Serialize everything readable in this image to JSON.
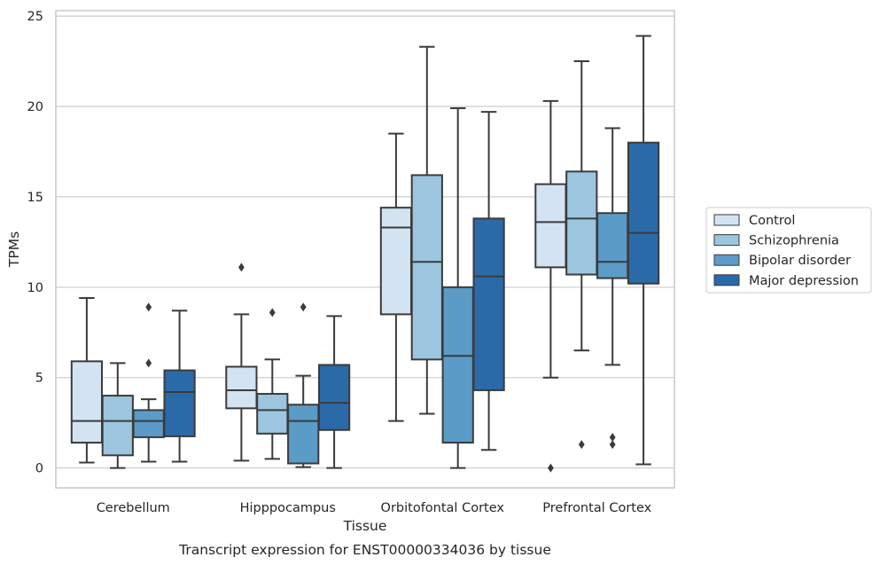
{
  "chart_data": {
    "type": "box",
    "title": "",
    "caption": "Transcript expression for ENST00000334036 by tissue",
    "xlabel": "Tissue",
    "ylabel": "TPMs",
    "ylim": [
      -1.1,
      25.3
    ],
    "yticks": [
      0,
      5,
      10,
      15,
      20,
      25
    ],
    "grid": "horizontal",
    "legend_position": "right",
    "categories": [
      "Cerebellum",
      "Hipppocampus",
      "Orbitofontal Cortex",
      "Prefrontal Cortex"
    ],
    "series": [
      {
        "name": "Control",
        "color": "#d3e3f2",
        "boxes": [
          {
            "whisker_low": 0.3,
            "q1": 1.4,
            "median": 2.6,
            "q3": 5.9,
            "whisker_high": 9.4,
            "outliers": []
          },
          {
            "whisker_low": 0.4,
            "q1": 3.3,
            "median": 4.3,
            "q3": 5.6,
            "whisker_high": 8.5,
            "outliers": [
              11.1
            ]
          },
          {
            "whisker_low": 2.6,
            "q1": 8.5,
            "median": 13.3,
            "q3": 14.4,
            "whisker_high": 18.5,
            "outliers": []
          },
          {
            "whisker_low": 5.0,
            "q1": 11.1,
            "median": 13.6,
            "q3": 15.7,
            "whisker_high": 20.3,
            "outliers": [
              0.0
            ]
          }
        ]
      },
      {
        "name": "Schizophrenia",
        "color": "#9cc6df",
        "boxes": [
          {
            "whisker_low": 0.0,
            "q1": 0.7,
            "median": 2.6,
            "q3": 4.0,
            "whisker_high": 5.8,
            "outliers": []
          },
          {
            "whisker_low": 0.5,
            "q1": 1.9,
            "median": 3.2,
            "q3": 4.1,
            "whisker_high": 6.0,
            "outliers": [
              8.6
            ]
          },
          {
            "whisker_low": 3.0,
            "q1": 6.0,
            "median": 11.4,
            "q3": 16.2,
            "whisker_high": 23.3,
            "outliers": []
          },
          {
            "whisker_low": 6.5,
            "q1": 10.7,
            "median": 13.8,
            "q3": 16.4,
            "whisker_high": 22.5,
            "outliers": [
              1.3
            ]
          }
        ]
      },
      {
        "name": "Bipolar disorder",
        "color": "#5b9bc8",
        "boxes": [
          {
            "whisker_low": 0.35,
            "q1": 1.7,
            "median": 2.6,
            "q3": 3.2,
            "whisker_high": 3.8,
            "outliers": [
              8.9,
              5.8
            ]
          },
          {
            "whisker_low": 0.05,
            "q1": 0.25,
            "median": 2.6,
            "q3": 3.5,
            "whisker_high": 5.1,
            "outliers": [
              8.9
            ]
          },
          {
            "whisker_low": 0.0,
            "q1": 1.4,
            "median": 6.2,
            "q3": 10.0,
            "whisker_high": 19.9,
            "outliers": []
          },
          {
            "whisker_low": 5.7,
            "q1": 10.5,
            "median": 11.4,
            "q3": 14.1,
            "whisker_high": 18.8,
            "outliers": [
              1.7,
              1.3
            ]
          }
        ]
      },
      {
        "name": "Major depression",
        "color": "#2b6aa8",
        "boxes": [
          {
            "whisker_low": 0.35,
            "q1": 1.75,
            "median": 4.2,
            "q3": 5.4,
            "whisker_high": 8.7,
            "outliers": []
          },
          {
            "whisker_low": 0.0,
            "q1": 2.1,
            "median": 3.6,
            "q3": 5.7,
            "whisker_high": 8.4,
            "outliers": []
          },
          {
            "whisker_low": 1.0,
            "q1": 4.3,
            "median": 10.6,
            "q3": 13.8,
            "whisker_high": 19.7,
            "outliers": []
          },
          {
            "whisker_low": 0.2,
            "q1": 10.2,
            "median": 13.0,
            "q3": 18.0,
            "whisker_high": 23.9,
            "outliers": []
          }
        ]
      }
    ]
  }
}
